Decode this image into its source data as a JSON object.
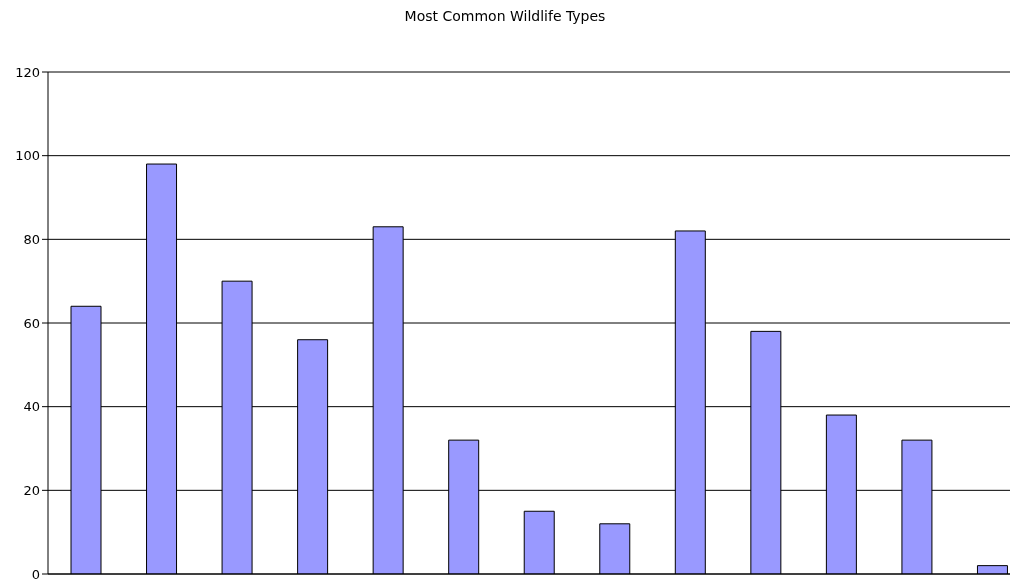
{
  "chart_data": {
    "type": "bar",
    "title": "Most Common Wildlife Types",
    "categories": [
      null,
      null,
      null,
      null,
      null,
      null,
      null,
      null,
      null,
      null,
      null,
      null,
      null
    ],
    "values": [
      64,
      98,
      70,
      56,
      83,
      32,
      15,
      12,
      82,
      58,
      38,
      32,
      2
    ],
    "color": "#9999ff",
    "ylim": [
      0,
      120
    ],
    "yticks": [
      0,
      20,
      40,
      60,
      80,
      100,
      120
    ],
    "grid": "y",
    "tick_labels": "y"
  }
}
